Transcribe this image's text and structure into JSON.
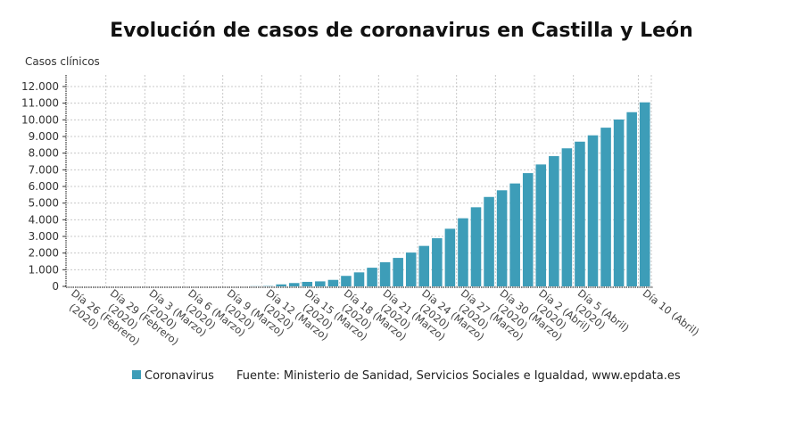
{
  "chart_data": {
    "type": "bar",
    "title": "Evolución de casos de coronavirus en Castilla y León",
    "ylabel": "Casos clínicos",
    "xlabel": "",
    "ylim": [
      0,
      12000
    ],
    "yticks": [
      0,
      1000,
      2000,
      3000,
      4000,
      5000,
      6000,
      7000,
      8000,
      9000,
      10000,
      11000,
      12000
    ],
    "ytick_labels": [
      "0",
      "1.000",
      "2.000",
      "3.000",
      "4.000",
      "5.000",
      "6.000",
      "7.000",
      "8.000",
      "9.000",
      "10.000",
      "11.000",
      "12.000"
    ],
    "grid": true,
    "bar_color": "#3d9db8",
    "categories": [
      "26 Feb",
      "27 Feb",
      "28 Feb",
      "29 Feb",
      "1 Mar",
      "2 Mar",
      "3 Mar",
      "4 Mar",
      "5 Mar",
      "6 Mar",
      "7 Mar",
      "8 Mar",
      "9 Mar",
      "10 Mar",
      "11 Mar",
      "12 Mar",
      "13 Mar",
      "14 Mar",
      "15 Mar",
      "16 Mar",
      "17 Mar",
      "18 Mar",
      "19 Mar",
      "20 Mar",
      "21 Mar",
      "22 Mar",
      "23 Mar",
      "24 Mar",
      "25 Mar",
      "26 Mar",
      "27 Mar",
      "28 Mar",
      "29 Mar",
      "30 Mar",
      "31 Mar",
      "1 Abr",
      "2 Abr",
      "3 Abr",
      "4 Abr",
      "5 Abr",
      "6 Abr",
      "7 Abr",
      "8 Abr",
      "9 Abr",
      "10 Abr"
    ],
    "series": [
      {
        "name": "Coronavirus",
        "values": [
          0,
          0,
          0,
          0,
          0,
          0,
          0,
          0,
          0,
          0,
          0,
          0,
          0,
          0,
          10,
          20,
          120,
          200,
          270,
          300,
          390,
          630,
          840,
          1120,
          1450,
          1710,
          2030,
          2430,
          2890,
          3460,
          4090,
          4750,
          5370,
          5770,
          6180,
          6800,
          7320,
          7820,
          8290,
          8690,
          9070,
          9530,
          10020,
          10460,
          11050
        ]
      }
    ],
    "xtick_labels": [
      {
        "index": 0,
        "lines": [
          "Día 26 (Febrero)",
          "(2020)"
        ]
      },
      {
        "index": 3,
        "lines": [
          "Día 29 (Febrero)",
          "(2020)"
        ]
      },
      {
        "index": 6,
        "lines": [
          "Día 3 (Marzo)",
          "(2020)"
        ]
      },
      {
        "index": 9,
        "lines": [
          "Día 6 (Marzo)",
          "(2020)"
        ]
      },
      {
        "index": 12,
        "lines": [
          "Día 9 (Marzo)",
          "(2020)"
        ]
      },
      {
        "index": 15,
        "lines": [
          "Día 12 (Marzo)",
          "(2020)"
        ]
      },
      {
        "index": 18,
        "lines": [
          "Día 15 (Marzo)",
          "(2020)"
        ]
      },
      {
        "index": 21,
        "lines": [
          "Día 18 (Marzo)",
          "(2020)"
        ]
      },
      {
        "index": 24,
        "lines": [
          "Día 21 (Marzo)",
          "(2020)"
        ]
      },
      {
        "index": 27,
        "lines": [
          "Día 24 (Marzo)",
          "(2020)"
        ]
      },
      {
        "index": 30,
        "lines": [
          "Día 27 (Marzo)",
          "(2020)"
        ]
      },
      {
        "index": 33,
        "lines": [
          "Día 30 (Marzo)",
          "(2020)"
        ]
      },
      {
        "index": 36,
        "lines": [
          "Día 2 (Abril)",
          "(2020)"
        ]
      },
      {
        "index": 39,
        "lines": [
          "Día 5 (Abril)",
          "(2020)"
        ]
      },
      {
        "index": 44,
        "lines": [
          "Día 10 (Abril)"
        ]
      }
    ],
    "legend": {
      "placement": "bottom",
      "label": "Coronavirus"
    },
    "source": "Fuente: Ministerio de Sanidad, Servicios Sociales e Igualdad, www.epdata.es"
  }
}
